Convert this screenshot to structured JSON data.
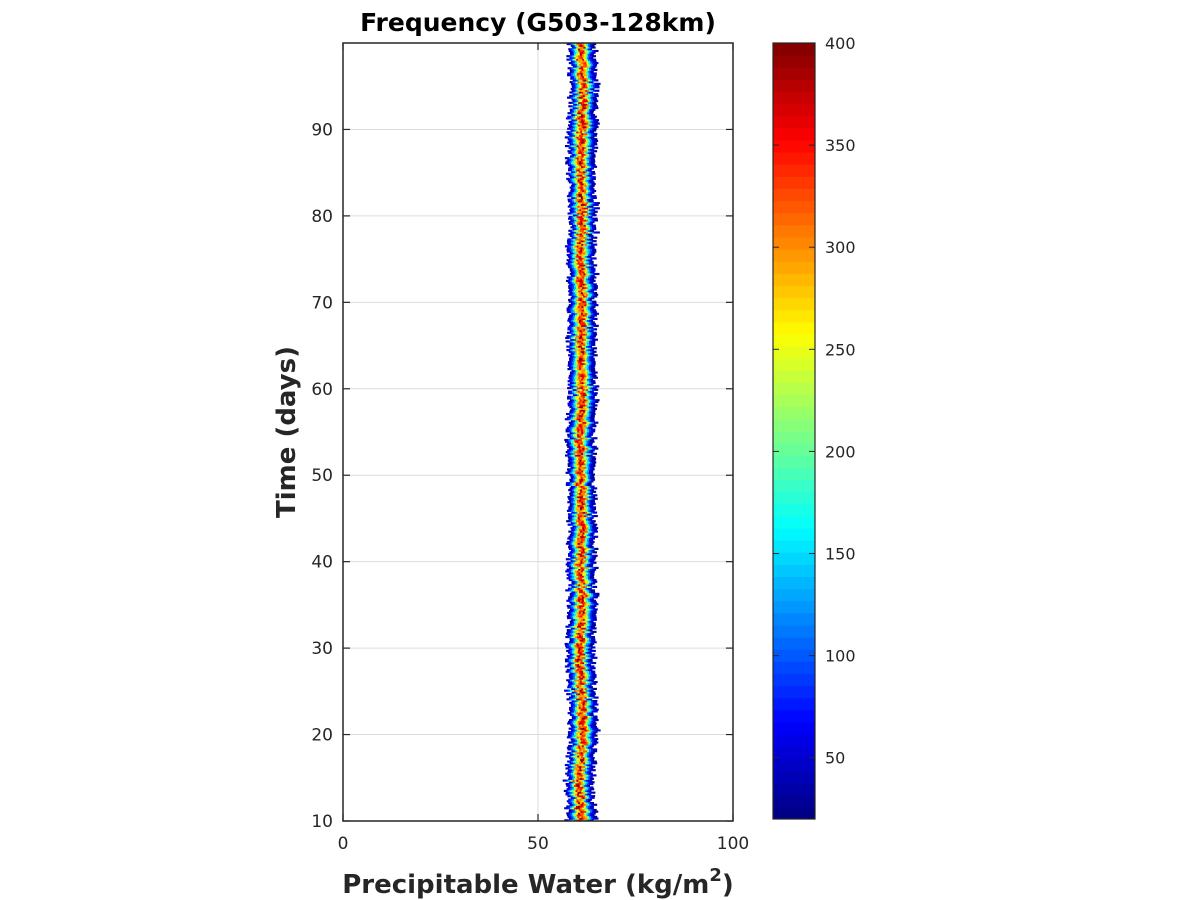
{
  "chart_data": {
    "type": "heatmap",
    "title": "Frequency (G503-128km)",
    "xlabel": "Precipitable Water (kg/m",
    "xlabel_superscript": "2",
    "xlabel_suffix": ")",
    "ylabel": "Time (days)",
    "xlim": [
      0,
      100
    ],
    "ylim": [
      10,
      100
    ],
    "xticks": [
      0,
      50,
      100
    ],
    "xtick_labels": [
      "0",
      "50",
      "100"
    ],
    "yticks": [
      10,
      20,
      30,
      40,
      50,
      60,
      70,
      80,
      90
    ],
    "ytick_labels": [
      "10",
      "20",
      "30",
      "40",
      "50",
      "60",
      "70",
      "80",
      "90"
    ],
    "grid": true,
    "colormap": "jet",
    "colorbar": {
      "range": [
        20,
        400
      ],
      "ticks": [
        50,
        100,
        150,
        200,
        250,
        300,
        350,
        400
      ],
      "tick_labels": [
        "50",
        "100",
        "150",
        "200",
        "250",
        "300",
        "350",
        "400"
      ]
    },
    "band": {
      "description_values": "nonzero frequency confined to a narrow band of precipitable water",
      "center_pw": [
        {
          "day": 10,
          "pw": 61.0
        },
        {
          "day": 15,
          "pw": 60.5
        },
        {
          "day": 20,
          "pw": 61.5
        },
        {
          "day": 25,
          "pw": 61.0
        },
        {
          "day": 30,
          "pw": 60.8
        },
        {
          "day": 35,
          "pw": 61.3
        },
        {
          "day": 40,
          "pw": 61.0
        },
        {
          "day": 45,
          "pw": 61.2
        },
        {
          "day": 50,
          "pw": 60.7
        },
        {
          "day": 55,
          "pw": 61.1
        },
        {
          "day": 60,
          "pw": 61.4
        },
        {
          "day": 65,
          "pw": 61.0
        },
        {
          "day": 70,
          "pw": 61.3
        },
        {
          "day": 75,
          "pw": 61.0
        },
        {
          "day": 80,
          "pw": 61.4
        },
        {
          "day": 85,
          "pw": 61.0
        },
        {
          "day": 90,
          "pw": 61.2
        },
        {
          "day": 95,
          "pw": 61.5
        },
        {
          "day": 100,
          "pw": 61.3
        }
      ],
      "half_width_pw": 3.3,
      "peak_frequency": 390
    }
  }
}
